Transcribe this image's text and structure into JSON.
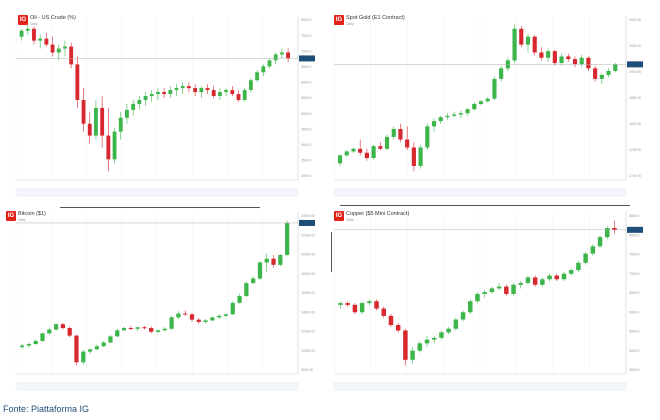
{
  "caption": "Fonte: Piattaforma IG",
  "colors": {
    "up": "#3cb54a",
    "down": "#d7282f",
    "price_tag": "#1f4e79",
    "logo": "#e2231a"
  },
  "panels": [
    {
      "id": "oil",
      "title": "Oil - US Crude (%)",
      "subtitle": "Daily",
      "y_ticks": [
        "8000.0",
        "7500.0",
        "7000.0",
        "6500.0",
        "6000.0",
        "5500.0",
        "5000.0",
        "4500.0",
        "4000.0",
        "3500.0",
        "3000.0"
      ]
    },
    {
      "id": "gold",
      "title": "Spot Gold (E1 Contract)",
      "subtitle": "Daily",
      "y_ticks": [
        "2000.00",
        "1950.00",
        "1900.00",
        "1850.00",
        "1800.00",
        "1750.00",
        "1700.00"
      ]
    },
    {
      "id": "bitcoin",
      "title": "Bitcoin ($1)",
      "subtitle": "Daily",
      "y_ticks": [
        "24000.00",
        "22000.00",
        "20000.00",
        "18000.00",
        "16000.00",
        "14000.00",
        "12000.00",
        "10000.00",
        "8000.00"
      ]
    },
    {
      "id": "copper",
      "title": "Copper ($5 Mini Contract)",
      "subtitle": "Daily",
      "y_ticks": [
        "8500.0",
        "8000.0",
        "7500.0",
        "7000.0",
        "6500.0",
        "6000.0",
        "5500.0",
        "5000.0",
        "4500.0"
      ]
    }
  ],
  "chart_data": [
    {
      "type": "candlestick",
      "title": "Oil - US Crude (%)",
      "candles": [
        [
          76,
          80,
          74,
          79
        ],
        [
          79,
          82,
          77,
          80
        ],
        [
          80,
          81,
          72,
          74
        ],
        [
          74,
          77,
          70,
          75
        ],
        [
          75,
          78,
          71,
          72
        ],
        [
          72,
          76,
          66,
          68
        ],
        [
          68,
          72,
          64,
          70
        ],
        [
          70,
          74,
          66,
          71
        ],
        [
          71,
          73,
          60,
          62
        ],
        [
          62,
          66,
          40,
          44
        ],
        [
          44,
          50,
          28,
          32
        ],
        [
          32,
          38,
          22,
          26
        ],
        [
          26,
          44,
          24,
          40
        ],
        [
          40,
          46,
          20,
          26
        ],
        [
          26,
          40,
          8,
          14
        ],
        [
          14,
          30,
          12,
          28
        ],
        [
          28,
          38,
          24,
          35
        ],
        [
          35,
          42,
          32,
          39
        ],
        [
          39,
          44,
          36,
          42
        ],
        [
          42,
          46,
          39,
          44
        ],
        [
          44,
          48,
          41,
          46
        ],
        [
          46,
          49,
          43,
          47
        ],
        [
          47,
          50,
          44,
          48
        ],
        [
          48,
          50,
          45,
          47
        ],
        [
          47,
          51,
          45,
          49
        ],
        [
          49,
          52,
          46,
          50
        ],
        [
          50,
          53,
          47,
          51
        ],
        [
          51,
          53,
          48,
          50
        ],
        [
          50,
          52,
          46,
          48
        ],
        [
          48,
          51,
          45,
          50
        ],
        [
          50,
          52,
          47,
          49
        ],
        [
          49,
          51,
          45,
          46
        ],
        [
          46,
          50,
          44,
          48
        ],
        [
          48,
          50,
          46,
          49
        ],
        [
          49,
          51,
          46,
          47
        ],
        [
          47,
          49,
          43,
          44
        ],
        [
          44,
          50,
          43,
          49
        ],
        [
          49,
          55,
          48,
          54
        ],
        [
          54,
          59,
          53,
          58
        ],
        [
          58,
          62,
          56,
          61
        ],
        [
          61,
          65,
          60,
          64
        ],
        [
          64,
          68,
          62,
          67
        ],
        [
          67,
          70,
          65,
          68
        ],
        [
          68,
          70,
          63,
          65
        ]
      ]
    },
    {
      "type": "candlestick",
      "title": "Spot Gold (E1 Contract)",
      "candles": [
        [
          1550,
          1585,
          1540,
          1580
        ],
        [
          1580,
          1600,
          1575,
          1595
        ],
        [
          1595,
          1610,
          1590,
          1605
        ],
        [
          1605,
          1640,
          1580,
          1590
        ],
        [
          1590,
          1605,
          1560,
          1570
        ],
        [
          1570,
          1620,
          1565,
          1615
        ],
        [
          1615,
          1630,
          1600,
          1605
        ],
        [
          1605,
          1660,
          1600,
          1650
        ],
        [
          1650,
          1690,
          1640,
          1680
        ],
        [
          1680,
          1700,
          1630,
          1640
        ],
        [
          1640,
          1690,
          1600,
          1610
        ],
        [
          1610,
          1630,
          1520,
          1540
        ],
        [
          1540,
          1620,
          1530,
          1610
        ],
        [
          1610,
          1700,
          1600,
          1690
        ],
        [
          1690,
          1720,
          1670,
          1710
        ],
        [
          1710,
          1730,
          1700,
          1725
        ],
        [
          1725,
          1740,
          1715,
          1730
        ],
        [
          1730,
          1745,
          1725,
          1735
        ],
        [
          1735,
          1750,
          1720,
          1740
        ],
        [
          1740,
          1760,
          1730,
          1755
        ],
        [
          1755,
          1780,
          1750,
          1775
        ],
        [
          1775,
          1790,
          1770,
          1785
        ],
        [
          1785,
          1800,
          1780,
          1795
        ],
        [
          1795,
          1880,
          1790,
          1870
        ],
        [
          1870,
          1920,
          1860,
          1910
        ],
        [
          1910,
          1950,
          1900,
          1940
        ],
        [
          1940,
          2075,
          1930,
          2060
        ],
        [
          2060,
          2070,
          1990,
          2000
        ],
        [
          2000,
          2040,
          1970,
          2030
        ],
        [
          2030,
          2035,
          1960,
          1970
        ],
        [
          1970,
          1990,
          1940,
          1950
        ],
        [
          1950,
          1985,
          1935,
          1975
        ],
        [
          1975,
          1980,
          1920,
          1930
        ],
        [
          1930,
          1965,
          1920,
          1955
        ],
        [
          1955,
          1965,
          1935,
          1945
        ],
        [
          1945,
          1955,
          1915,
          1925
        ],
        [
          1925,
          1960,
          1915,
          1950
        ],
        [
          1950,
          1955,
          1900,
          1910
        ],
        [
          1910,
          1920,
          1860,
          1870
        ],
        [
          1870,
          1890,
          1850,
          1885
        ],
        [
          1885,
          1910,
          1875,
          1900
        ],
        [
          1900,
          1930,
          1895,
          1925
        ]
      ]
    },
    {
      "type": "candlestick",
      "title": "Bitcoin ($1)",
      "candles": [
        [
          7200,
          7600,
          6900,
          7400
        ],
        [
          7400,
          7800,
          7100,
          7600
        ],
        [
          7600,
          8200,
          7500,
          8000
        ],
        [
          8000,
          9100,
          7900,
          9000
        ],
        [
          9000,
          9700,
          8800,
          9500
        ],
        [
          9500,
          10300,
          9400,
          10200
        ],
        [
          10200,
          10400,
          9500,
          9700
        ],
        [
          9700,
          9900,
          8500,
          8700
        ],
        [
          8700,
          8800,
          4800,
          5200
        ],
        [
          5200,
          6800,
          4900,
          6600
        ],
        [
          6600,
          7000,
          6300,
          6900
        ],
        [
          6900,
          7500,
          6800,
          7300
        ],
        [
          7300,
          8000,
          7200,
          7800
        ],
        [
          7800,
          8800,
          7700,
          8600
        ],
        [
          8600,
          9600,
          8500,
          9400
        ],
        [
          9400,
          9900,
          9300,
          9700
        ],
        [
          9700,
          10000,
          9400,
          9600
        ],
        [
          9600,
          9900,
          9300,
          9800
        ],
        [
          9800,
          10000,
          9500,
          9700
        ],
        [
          9700,
          9900,
          9000,
          9200
        ],
        [
          9200,
          9500,
          9000,
          9400
        ],
        [
          9400,
          9800,
          9300,
          9600
        ],
        [
          9600,
          11300,
          9500,
          11100
        ],
        [
          11100,
          11900,
          10900,
          11600
        ],
        [
          11600,
          12000,
          11300,
          11500
        ],
        [
          11500,
          11700,
          10500,
          10800
        ],
        [
          10800,
          11000,
          10200,
          10500
        ],
        [
          10500,
          10900,
          10300,
          10700
        ],
        [
          10700,
          11200,
          10600,
          11100
        ],
        [
          11100,
          11500,
          10900,
          11300
        ],
        [
          11300,
          11600,
          11100,
          11500
        ],
        [
          11500,
          13200,
          11400,
          13000
        ],
        [
          13000,
          14200,
          12900,
          13900
        ],
        [
          13900,
          15800,
          13800,
          15600
        ],
        [
          15600,
          16500,
          15500,
          16200
        ],
        [
          16200,
          18500,
          16000,
          18300
        ],
        [
          18300,
          19500,
          17000,
          18800
        ],
        [
          18800,
          19300,
          17600,
          18000
        ],
        [
          18000,
          19400,
          17800,
          19300
        ],
        [
          19300,
          23800,
          19100,
          23500
        ]
      ]
    },
    {
      "type": "candlestick",
      "title": "Copper ($5 Mini Contract)",
      "candles": [
        [
          6150,
          6250,
          6050,
          6200
        ],
        [
          6200,
          6250,
          6100,
          6150
        ],
        [
          6150,
          6200,
          5900,
          5950
        ],
        [
          5950,
          6250,
          5900,
          6200
        ],
        [
          6200,
          6300,
          6150,
          6250
        ],
        [
          6250,
          6300,
          6000,
          6050
        ],
        [
          6050,
          6100,
          5800,
          5850
        ],
        [
          5850,
          5900,
          5550,
          5600
        ],
        [
          5600,
          5650,
          5400,
          5450
        ],
        [
          5450,
          5500,
          4500,
          4650
        ],
        [
          4650,
          5000,
          4550,
          4900
        ],
        [
          4900,
          5150,
          4850,
          5100
        ],
        [
          5100,
          5300,
          5000,
          5200
        ],
        [
          5200,
          5300,
          5100,
          5250
        ],
        [
          5250,
          5450,
          5200,
          5400
        ],
        [
          5400,
          5550,
          5350,
          5500
        ],
        [
          5500,
          5800,
          5450,
          5750
        ],
        [
          5750,
          6000,
          5700,
          5950
        ],
        [
          5950,
          6300,
          5900,
          6250
        ],
        [
          6250,
          6500,
          6200,
          6450
        ],
        [
          6450,
          6550,
          6350,
          6500
        ],
        [
          6500,
          6650,
          6450,
          6600
        ],
        [
          6600,
          6750,
          6550,
          6650
        ],
        [
          6650,
          6700,
          6400,
          6450
        ],
        [
          6450,
          6750,
          6400,
          6700
        ],
        [
          6700,
          6800,
          6600,
          6750
        ],
        [
          6750,
          6950,
          6700,
          6900
        ],
        [
          6900,
          6950,
          6650,
          6700
        ],
        [
          6700,
          6900,
          6650,
          6850
        ],
        [
          6850,
          7000,
          6800,
          6950
        ],
        [
          6950,
          7000,
          6800,
          6850
        ],
        [
          6850,
          7050,
          6800,
          7000
        ],
        [
          7000,
          7150,
          6950,
          7100
        ],
        [
          7100,
          7350,
          7050,
          7300
        ],
        [
          7300,
          7600,
          7250,
          7550
        ],
        [
          7550,
          7800,
          7500,
          7750
        ],
        [
          7750,
          8050,
          7700,
          8000
        ],
        [
          8000,
          8300,
          7950,
          8250
        ],
        [
          8250,
          8450,
          8100,
          8200
        ]
      ]
    }
  ]
}
